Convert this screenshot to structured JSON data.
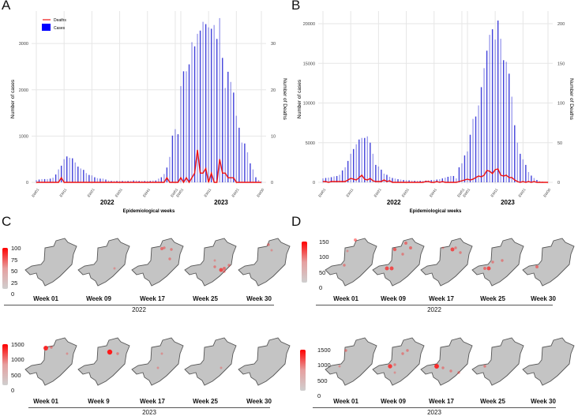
{
  "panels": {
    "a": "A",
    "b": "B",
    "c": "C",
    "d": "D"
  },
  "legend": {
    "deaths": "Deaths",
    "cases": "Cases"
  },
  "colors": {
    "cases": "#2b2bd6",
    "deaths": "#ee1111",
    "map": "#c4c4c4",
    "hot": "#ff1a1a"
  },
  "chart_data": [
    {
      "type": "bar+line",
      "panel": "A",
      "xlabel": "Epidemiological weeks",
      "ylabel": "Number of cases",
      "y2label": "Number of Deaths",
      "years": [
        "2022",
        "2023"
      ],
      "tick_labels": [
        "EW01",
        "EW11",
        "EW21",
        "EW31",
        "EW41",
        "EW51",
        "EW01",
        "EW11",
        "EW21",
        "EW30"
      ],
      "ylim": [
        0,
        3600
      ],
      "yticks": [
        "0",
        "1000",
        "2000",
        "3000"
      ],
      "y2lim": [
        0,
        36
      ],
      "y2ticks": [
        "0",
        "10",
        "20",
        "30"
      ],
      "cases_2022": [
        50,
        60,
        70,
        70,
        70,
        80,
        100,
        170,
        280,
        360,
        500,
        560,
        530,
        520,
        430,
        340,
        300,
        270,
        200,
        160,
        150,
        110,
        90,
        80,
        80,
        60,
        40,
        30,
        30,
        30,
        30,
        30,
        30,
        30,
        30,
        40,
        40,
        30,
        30,
        30,
        30,
        30,
        40,
        40,
        80,
        110,
        180,
        320,
        550,
        1010,
        1150,
        1040
      ],
      "cases_2023": [
        2080,
        2400,
        2400,
        2550,
        3030,
        2940,
        3210,
        3280,
        3470,
        3420,
        3350,
        3320,
        3400,
        3100,
        3550,
        2690,
        2040,
        2390,
        2170,
        1940,
        1440,
        1180,
        860,
        840,
        650,
        410,
        280,
        110,
        50,
        10
      ],
      "deaths_2022": [
        0,
        0,
        0,
        0,
        0,
        0,
        0,
        0,
        0,
        1,
        0,
        0,
        0,
        0,
        0,
        0,
        0,
        0,
        0,
        0,
        0,
        0,
        0,
        0,
        0,
        0,
        0,
        0,
        0,
        0,
        0,
        0,
        0,
        0,
        0,
        0,
        0,
        0,
        0,
        0,
        0,
        0,
        0,
        0,
        0,
        0,
        0,
        1,
        0,
        0,
        0,
        0
      ],
      "deaths_2023": [
        1,
        0,
        1,
        0,
        1,
        2,
        7,
        2,
        2,
        3,
        0,
        2,
        0,
        0,
        5,
        2,
        2,
        1,
        1,
        1,
        0,
        0,
        0,
        0,
        0,
        0,
        0,
        0,
        0,
        0
      ]
    },
    {
      "type": "bar+line",
      "panel": "B",
      "xlabel": "Epidemiological weeks",
      "ylabel": "Number of cases",
      "y2label": "Number of Deaths",
      "years": [
        "2022",
        "2023"
      ],
      "tick_labels": [
        "EW01",
        "EW11",
        "EW21",
        "EW31",
        "EW41",
        "EW51",
        "EW01",
        "EW11",
        "EW21",
        "EW30"
      ],
      "ylim": [
        0,
        21000
      ],
      "yticks": [
        "0",
        "5000",
        "10000",
        "15000",
        "20000"
      ],
      "y2lim": [
        0,
        210
      ],
      "y2ticks": [
        "0",
        "50",
        "100",
        "150",
        "200"
      ],
      "cases_2022": [
        500,
        550,
        600,
        650,
        750,
        800,
        950,
        1500,
        1900,
        2700,
        3600,
        4200,
        4800,
        5400,
        5600,
        5600,
        5800,
        5000,
        3600,
        2200,
        2000,
        1600,
        1100,
        950,
        700,
        550,
        480,
        400,
        350,
        300,
        280,
        250,
        220,
        200,
        200,
        200,
        200,
        220,
        250,
        280,
        300,
        350,
        400,
        500,
        600,
        700,
        800,
        800,
        500,
        1900,
        2400,
        3400
      ],
      "cases_2023": [
        3900,
        6000,
        8000,
        8300,
        9700,
        12000,
        14400,
        16600,
        18600,
        19300,
        18000,
        20400,
        18100,
        15400,
        15200,
        13700,
        10800,
        7200,
        5000,
        3600,
        2900,
        2200,
        1300,
        850,
        550,
        300,
        150,
        80,
        40,
        20
      ],
      "deaths_2022": [
        1,
        1,
        0,
        1,
        1,
        1,
        1,
        1,
        1,
        3,
        5,
        4,
        3,
        6,
        9,
        4,
        3,
        5,
        2,
        1,
        1,
        1,
        3,
        1,
        2,
        0,
        0,
        0,
        0,
        0,
        0,
        0,
        0,
        0,
        0,
        0,
        0,
        1,
        1,
        0,
        0,
        1,
        0,
        1,
        0,
        0,
        0,
        0,
        0,
        1,
        2,
        3
      ],
      "deaths_2023": [
        4,
        3,
        4,
        6,
        8,
        7,
        9,
        15,
        14,
        11,
        16,
        17,
        9,
        8,
        9,
        6,
        6,
        3,
        1,
        0,
        1,
        0,
        1,
        0,
        1,
        0,
        0,
        0,
        0,
        0
      ]
    }
  ],
  "maps": {
    "c": {
      "scale_2022": [
        "100",
        "75",
        "50",
        "25",
        "0"
      ],
      "scale_2023": [
        "1500",
        "1000",
        "500",
        "0"
      ],
      "weeks_2022": [
        "Week 01",
        "Week 09",
        "Week 17",
        "Week 25",
        "Week 30"
      ],
      "weeks_2023": [
        "Week 01",
        "Week 9",
        "Week 17",
        "Week 25",
        "Week 30"
      ],
      "year_2022": "2022",
      "year_2023": "2023"
    },
    "d": {
      "scale_2022": [
        "150",
        "100",
        "50",
        "0"
      ],
      "scale_2023": [
        "1500",
        "1000",
        "500",
        "0"
      ],
      "weeks_2022": [
        "Week 01",
        "Week 09",
        "Week 17",
        "Week 25",
        "Week 30"
      ],
      "weeks_2023": [
        "Week 01",
        "Week 09",
        "Week 17",
        "Week 25",
        "Week 30"
      ],
      "year_2022": "2022",
      "year_2023": "2023"
    }
  }
}
